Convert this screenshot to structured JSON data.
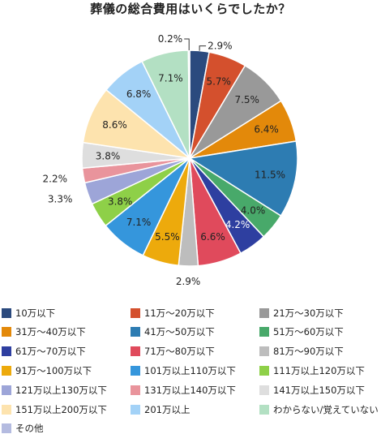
{
  "chart_data": {
    "type": "pie",
    "title": "葬儀の総合費用はいくらでしたか？",
    "slices": [
      {
        "label": "10万以下",
        "value": 2.9,
        "display": "2.9%",
        "color": "#2b4a7e"
      },
      {
        "label": "11万～20万以下",
        "value": 5.7,
        "display": "5.7%",
        "color": "#d4502d"
      },
      {
        "label": "21万～30万以下",
        "value": 7.5,
        "display": "7.5%",
        "color": "#999999"
      },
      {
        "label": "31万～40万以下",
        "value": 6.4,
        "display": "6.4%",
        "color": "#e3890a"
      },
      {
        "label": "41万～50万以下",
        "value": 11.5,
        "display": "11.5%",
        "color": "#2d7cb2"
      },
      {
        "label": "51万～60万以下",
        "value": 4.0,
        "display": "4.0%",
        "color": "#48a96a"
      },
      {
        "label": "61万～70万以下",
        "value": 4.2,
        "display": "4.2%",
        "color": "#2e3fa0"
      },
      {
        "label": "71万～80万以下",
        "value": 6.6,
        "display": "6.6%",
        "color": "#e04a5c"
      },
      {
        "label": "81万～90万以下",
        "value": 2.9,
        "display": "2.9%",
        "color": "#bdbdbd"
      },
      {
        "label": "91万～100万以下",
        "value": 5.5,
        "display": "5.5%",
        "color": "#edaa0c"
      },
      {
        "label": "101万以上110万以下",
        "value": 7.1,
        "display": "7.1%",
        "color": "#3596dc"
      },
      {
        "label": "111万以上120万以下",
        "value": 3.8,
        "display": "3.8%",
        "color": "#8ed048"
      },
      {
        "label": "121万以上130万以下",
        "value": 3.3,
        "display": "3.3%",
        "color": "#9da5d8"
      },
      {
        "label": "131万以上140万以下",
        "value": 2.2,
        "display": "2.2%",
        "color": "#e9949c"
      },
      {
        "label": "141万以上150万以下",
        "value": 3.8,
        "display": "3.8%",
        "color": "#dedede"
      },
      {
        "label": "151万以上200万以下",
        "value": 8.6,
        "display": "8.6%",
        "color": "#fde3ae"
      },
      {
        "label": "201万以上",
        "value": 6.8,
        "display": "6.8%",
        "color": "#a3d2f7"
      },
      {
        "label": "わからない/覚えていない",
        "value": 7.1,
        "display": "7.1%",
        "color": "#b3e0c3"
      },
      {
        "label": "その他",
        "value": 0.2,
        "display": "0.2%",
        "color": "#b4bbe0"
      }
    ],
    "legend_placement": "bottom",
    "start_angle": "top, clockwise"
  }
}
